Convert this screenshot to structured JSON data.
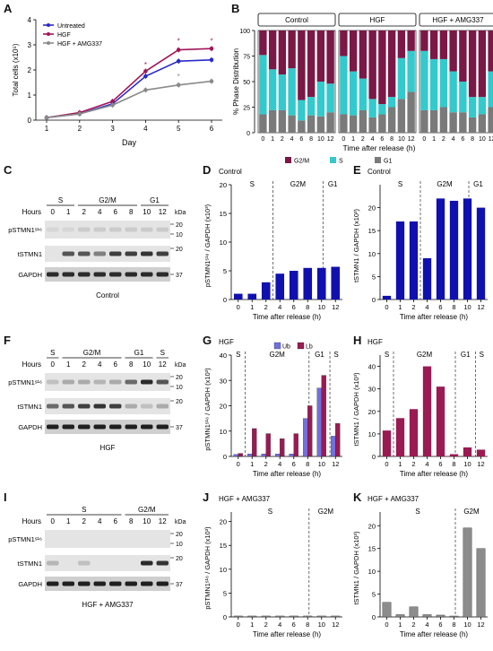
{
  "panel_labels": [
    "A",
    "B",
    "C",
    "D",
    "E",
    "F",
    "G",
    "H",
    "I",
    "J",
    "K"
  ],
  "colors": {
    "untreated": "#2a2ac8",
    "hgf": "#a0165a",
    "amg": "#8a8a8a",
    "g2m": "#7a1846",
    "s": "#34c9cc",
    "g1": "#7a7a7a",
    "blue_bar": "#1010b0",
    "ub": "#7070e0",
    "lb": "#9a1a52",
    "grey_bar": "#8c8c8c"
  },
  "chart_data": [
    {
      "id": "A",
      "type": "line",
      "x": [
        1,
        2,
        3,
        4,
        5,
        6
      ],
      "xlabel": "Day",
      "ylabel": "Total cells (x10⁵)",
      "ylim": [
        0,
        4
      ],
      "yticks": [
        "0",
        "1",
        "2",
        "3",
        "4"
      ],
      "series": [
        {
          "name": "Untreated",
          "values": [
            0.1,
            0.25,
            0.65,
            1.75,
            2.35,
            2.4
          ]
        },
        {
          "name": "HGF",
          "values": [
            0.1,
            0.3,
            0.75,
            1.95,
            2.8,
            2.85
          ]
        },
        {
          "name": "HGF + AMG337",
          "values": [
            0.1,
            0.25,
            0.6,
            1.2,
            1.4,
            1.55
          ]
        }
      ],
      "annotations": [
        "*",
        "*",
        "*",
        "*"
      ]
    },
    {
      "id": "B",
      "type": "bar",
      "stacked": true,
      "ylabel": "% Phase Distribution",
      "xlabel": "Time after release (h)",
      "ylim": [
        0,
        100
      ],
      "yticks": [
        "0",
        "25",
        "50",
        "75",
        "100"
      ],
      "categories": [
        "0",
        "1",
        "2",
        "4",
        "6",
        "8",
        "10",
        "12"
      ],
      "legend": [
        "G2/M",
        "S",
        "G1"
      ],
      "groups": [
        {
          "name": "Control",
          "G1": [
            18,
            22,
            22,
            17,
            12,
            17,
            16,
            20
          ],
          "S": [
            58,
            40,
            35,
            46,
            20,
            18,
            34,
            28
          ],
          "G2M": [
            24,
            38,
            43,
            37,
            68,
            65,
            50,
            52
          ]
        },
        {
          "name": "HGF",
          "G1": [
            18,
            17,
            22,
            15,
            18,
            25,
            33,
            40
          ],
          "S": [
            57,
            43,
            31,
            18,
            10,
            10,
            40,
            40
          ],
          "G2M": [
            25,
            40,
            47,
            67,
            72,
            65,
            27,
            20
          ]
        },
        {
          "name": "HGF + AMG337",
          "G1": [
            22,
            22,
            25,
            20,
            20,
            15,
            18,
            25
          ],
          "S": [
            58,
            50,
            47,
            40,
            30,
            20,
            17,
            35
          ],
          "G2M": [
            20,
            28,
            28,
            40,
            50,
            65,
            65,
            40
          ]
        }
      ]
    },
    {
      "id": "D",
      "type": "bar",
      "title": "Control",
      "ylabel": "pSTMN1ˢ¹⁶ / GAPDH (x10³)",
      "xlabel": "Time after release (h)",
      "ylim": [
        0,
        20
      ],
      "yticks": [
        "0",
        "5",
        "10",
        "15",
        "20"
      ],
      "categories": [
        "0",
        "1",
        "2",
        "4",
        "6",
        "8",
        "10",
        "12"
      ],
      "values": [
        1,
        1,
        3,
        4.5,
        5,
        5.5,
        5.5,
        5.7
      ],
      "phases": [
        "S",
        "G2M",
        "G1"
      ]
    },
    {
      "id": "E",
      "type": "bar",
      "title": "Control",
      "ylabel": "tSTMN1 / GAPDH (x10³)",
      "xlabel": "Time after release (h)",
      "ylim": [
        0,
        25
      ],
      "yticks": [
        "0",
        "5",
        "10",
        "15",
        "20"
      ],
      "categories": [
        "0",
        "1",
        "2",
        "4",
        "6",
        "8",
        "10",
        "12"
      ],
      "values": [
        0.8,
        17,
        17,
        9,
        22,
        21.5,
        22,
        20
      ],
      "phases": [
        "S",
        "G2M",
        "G1"
      ]
    },
    {
      "id": "G",
      "type": "bar",
      "title": "HGF",
      "ylabel": "pSTMN1ˢ¹⁶ / GAPDH (x10³)",
      "xlabel": "Time after release (h)",
      "ylim": [
        0,
        40
      ],
      "yticks": [
        "0",
        "10",
        "20",
        "30",
        "40"
      ],
      "categories": [
        "0",
        "1",
        "2",
        "4",
        "6",
        "8",
        "10",
        "12"
      ],
      "series": [
        {
          "name": "Ub",
          "values": [
            0.8,
            1,
            1,
            1,
            1,
            15,
            27,
            8
          ]
        },
        {
          "name": "Lb",
          "values": [
            1.2,
            11,
            9,
            7,
            9,
            20,
            32,
            13
          ]
        }
      ],
      "phases": [
        "S",
        "G2M",
        "G1",
        "S"
      ]
    },
    {
      "id": "H",
      "type": "bar",
      "title": "HGF",
      "ylabel": "tSTMN1 / GAPDH (x10³)",
      "xlabel": "Time after release (h)",
      "ylim": [
        0,
        45
      ],
      "yticks": [
        "0",
        "10",
        "20",
        "30",
        "40"
      ],
      "categories": [
        "0",
        "1",
        "2",
        "4",
        "6",
        "8",
        "10",
        "12"
      ],
      "values": [
        11.5,
        17,
        21,
        40,
        31,
        1,
        4,
        3
      ],
      "phases": [
        "S",
        "G2M",
        "G1",
        "S"
      ]
    },
    {
      "id": "J",
      "type": "bar",
      "title": "HGF + AMG337",
      "ylabel": "pSTMN1ˢ¹⁶ / GAPDH (x10³)",
      "xlabel": "Time after release (h)",
      "ylim": [
        0,
        22
      ],
      "yticks": [
        "0",
        "5",
        "10",
        "15",
        "20"
      ],
      "categories": [
        "0",
        "1",
        "2",
        "4",
        "6",
        "8",
        "10",
        "12"
      ],
      "values": [
        0.2,
        0.2,
        0.2,
        0.2,
        0.2,
        0.2,
        0.2,
        0.2
      ],
      "phases": [
        "S",
        "G2M"
      ]
    },
    {
      "id": "K",
      "type": "bar",
      "title": "HGF + AMG337",
      "ylabel": "tSTMN1 / GAPDH (x10³)",
      "xlabel": "Time after release (h)",
      "ylim": [
        0,
        23
      ],
      "yticks": [
        "0",
        "5",
        "10",
        "15",
        "20"
      ],
      "categories": [
        "0",
        "1",
        "2",
        "4",
        "6",
        "8",
        "10",
        "12"
      ],
      "values": [
        3.2,
        0.5,
        2.2,
        0.5,
        0.4,
        0.2,
        19.5,
        15
      ],
      "phases": [
        "S",
        "G2M"
      ]
    }
  ],
  "blots": {
    "C": {
      "hours_label": "Hours",
      "hours": [
        "0",
        "1",
        "2",
        "4",
        "6",
        "8",
        "10",
        "12"
      ],
      "phases": [
        "S",
        "G2/M",
        "G1"
      ],
      "rows": [
        "pSTMN1ˢ¹⁶",
        "tSTMN1",
        "GAPDH"
      ],
      "kda": "kDa",
      "markers": [
        "20",
        "10",
        "20",
        "37"
      ],
      "caption": "Control"
    },
    "F": {
      "hours_label": "Hours",
      "hours": [
        "0",
        "1",
        "2",
        "4",
        "6",
        "8",
        "10",
        "12"
      ],
      "phases": [
        "S",
        "G2/M",
        "G1",
        "S"
      ],
      "rows": [
        "pSTMN1ˢ¹⁶",
        "tSTMN1",
        "GAPDH"
      ],
      "kda": "kDa",
      "markers": [
        "20",
        "10",
        "20",
        "37"
      ],
      "caption": "HGF"
    },
    "I": {
      "hours_label": "Hours",
      "hours": [
        "0",
        "1",
        "2",
        "4",
        "6",
        "8",
        "10",
        "12"
      ],
      "phases": [
        "S",
        "G2/M"
      ],
      "rows": [
        "pSTMN1ˢ¹⁶",
        "tSTMN1",
        "GAPDH"
      ],
      "kda": "kDa",
      "markers": [
        "20",
        "10",
        "20",
        "37"
      ],
      "caption": "HGF + AMG337"
    }
  }
}
